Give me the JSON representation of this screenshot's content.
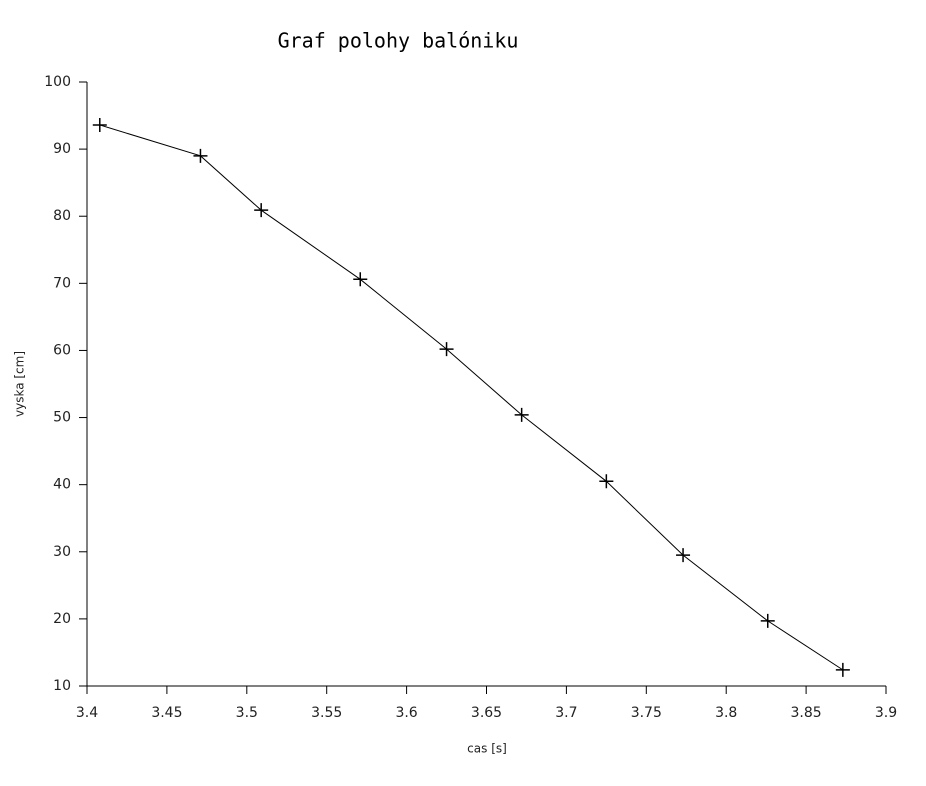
{
  "chart_data": {
    "type": "line",
    "title": "Graf polohy balóniku",
    "x_label": "cas [s]",
    "y_label": "vyska [cm]",
    "x": [
      3.408,
      3.471,
      3.509,
      3.571,
      3.625,
      3.672,
      3.725,
      3.773,
      3.826,
      3.873
    ],
    "series": [
      {
        "color": "#000000",
        "marker": "+",
        "values": [
          93.6,
          89.0,
          80.9,
          70.6,
          60.2,
          50.4,
          40.5,
          29.5,
          19.7,
          12.4
        ]
      }
    ],
    "xlim": [
      3.4,
      3.9
    ],
    "xticks": [
      3.4,
      3.45,
      3.5,
      3.55,
      3.6,
      3.65,
      3.7,
      3.75,
      3.8,
      3.85,
      3.9
    ],
    "ylim": [
      10,
      100
    ],
    "yticks": [
      10,
      20,
      30,
      40,
      50,
      60,
      70,
      80,
      90,
      100
    ]
  }
}
